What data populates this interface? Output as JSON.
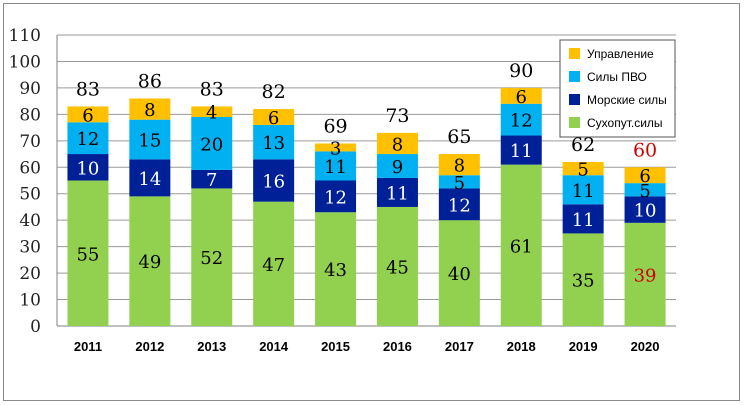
{
  "chart_data": {
    "type": "bar",
    "stacked": true,
    "categories": [
      "2011",
      "2012",
      "2013",
      "2014",
      "2015",
      "2016",
      "2017",
      "2018",
      "2019",
      "2020"
    ],
    "series": [
      {
        "name": "Сухопут.силы",
        "color": "#92d050",
        "values": [
          55,
          49,
          52,
          47,
          43,
          45,
          40,
          61,
          35,
          39
        ]
      },
      {
        "name": "Морские силы",
        "color": "#002098",
        "values": [
          10,
          14,
          7,
          16,
          12,
          11,
          12,
          11,
          11,
          10
        ]
      },
      {
        "name": "Силы ПВО",
        "color": "#00b0f0",
        "values": [
          12,
          15,
          20,
          13,
          11,
          9,
          5,
          12,
          11,
          5
        ]
      },
      {
        "name": "Управление",
        "color": "#ffc000",
        "values": [
          6,
          8,
          4,
          6,
          3,
          8,
          8,
          6,
          5,
          6
        ]
      }
    ],
    "totals": [
      83,
      86,
      83,
      82,
      69,
      73,
      65,
      90,
      62,
      60
    ],
    "highlight": {
      "category": "2020",
      "color": "#d00000"
    },
    "ylim": [
      0,
      110
    ],
    "yticks": [
      0,
      10,
      20,
      30,
      40,
      50,
      60,
      70,
      80,
      90,
      100,
      110
    ],
    "grid": true,
    "legend_position": "top-right",
    "legend_order": [
      "Управление",
      "Силы ПВО",
      "Морские силы",
      "Сухопут.силы"
    ],
    "title": "",
    "xlabel": "",
    "ylabel": ""
  }
}
